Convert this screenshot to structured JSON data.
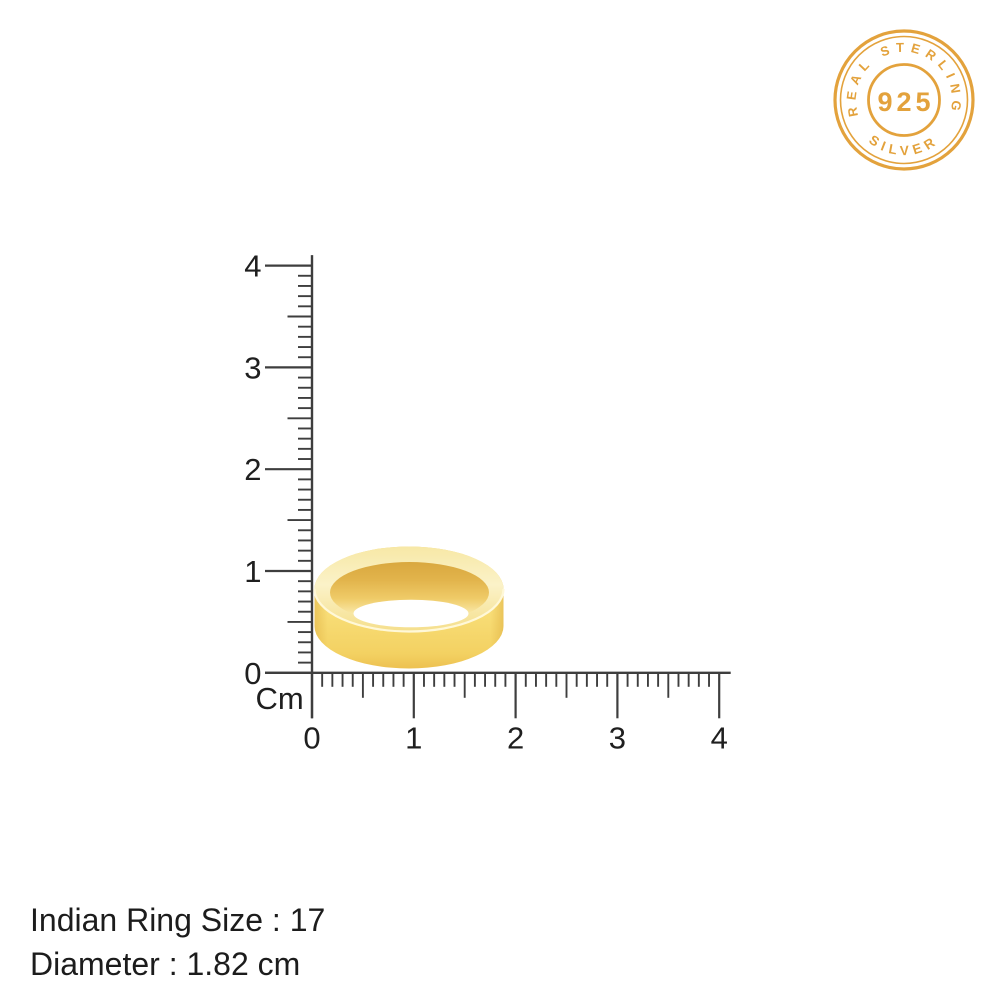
{
  "badge": {
    "top_text": "REAL STERLING",
    "center_text": "925",
    "bottom_text": "SILVER",
    "color": "#E3A23C"
  },
  "ruler": {
    "unit_label": "Cm",
    "vertical_labels": [
      "0",
      "1",
      "2",
      "3",
      "4"
    ],
    "horizontal_labels": [
      "0",
      "1",
      "2",
      "3",
      "4"
    ],
    "line_color": "#3E3E3E",
    "label_color": "#1F1F1F"
  },
  "ring": {
    "gold_main": "#F8DE79",
    "gold_rim": "#FAF0C0",
    "gold_inner_shadow": "#D9A83F",
    "hole_color": "#FFFFFF"
  },
  "details": {
    "ring_size_label": "Indian Ring Size : 17",
    "diameter_label": "Diameter : 1.82 cm"
  }
}
